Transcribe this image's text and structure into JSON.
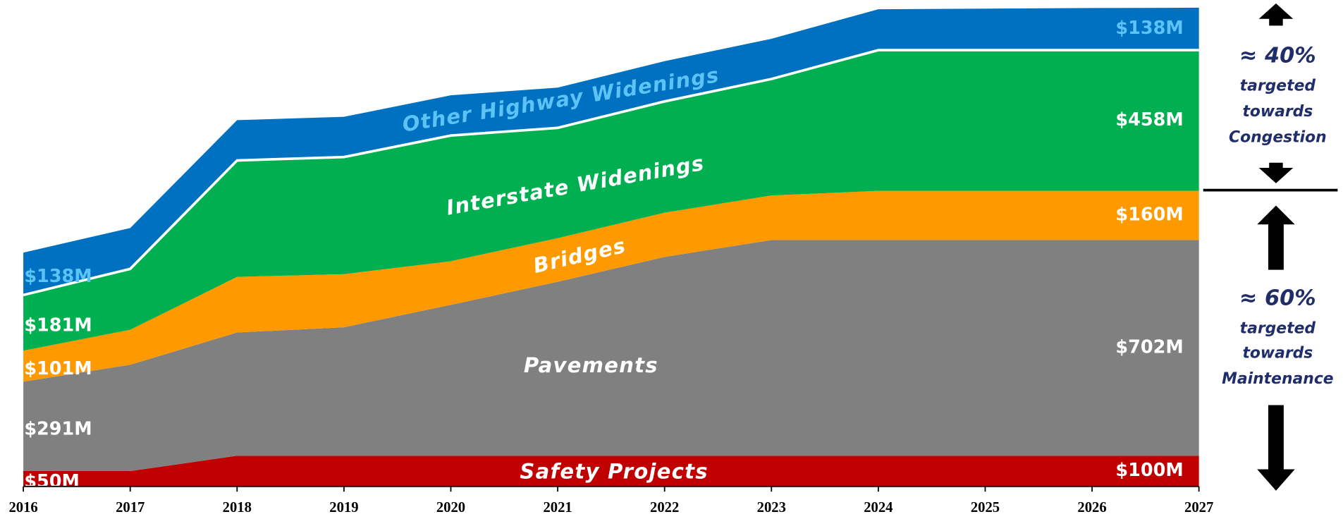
{
  "chart_data": {
    "type": "stacked_area",
    "categories": [
      "2016",
      "2017",
      "2018",
      "2019",
      "2020",
      "2021",
      "2022",
      "2023",
      "2024",
      "2025",
      "2026",
      "2027"
    ],
    "series": [
      {
        "name": "Safety Projects",
        "color": "#c00000",
        "label_color": "#ffffff",
        "values": [
          50,
          50,
          100,
          100,
          100,
          100,
          100,
          100,
          100,
          100,
          100,
          100
        ],
        "value_labels": [
          "$50M",
          null,
          null,
          null,
          null,
          null,
          null,
          null,
          null,
          null,
          null,
          "$100M"
        ]
      },
      {
        "name": "Pavements",
        "color": "#808080",
        "label_color": "#ffffff",
        "values": [
          291,
          346,
          401,
          418,
          491,
          566,
          647,
          702,
          702,
          702,
          702,
          702
        ],
        "value_labels": [
          "$291M",
          null,
          null,
          null,
          null,
          null,
          null,
          null,
          null,
          null,
          null,
          "$702M"
        ]
      },
      {
        "name": "Bridges",
        "color": "#ff9900",
        "label_color": "#ffffff",
        "values": [
          101,
          114,
          181,
          173,
          142,
          142,
          144,
          145,
          160,
          160,
          160,
          160
        ],
        "value_labels": [
          "$101M",
          null,
          null,
          null,
          null,
          null,
          null,
          null,
          null,
          null,
          null,
          "$160M"
        ]
      },
      {
        "name": "Interstate Widenings",
        "color": "#00b050",
        "label_color": "#ffffff",
        "values": [
          181,
          198,
          379,
          381,
          409,
          359,
          362,
          379,
          458,
          458,
          458,
          458
        ],
        "value_labels": [
          "$181M",
          null,
          null,
          null,
          null,
          null,
          null,
          null,
          null,
          null,
          null,
          "$458M"
        ]
      },
      {
        "name": "Other Highway Widenings",
        "color": "#0070c0",
        "label_color": "#5bc3f5",
        "values": [
          138,
          133,
          131,
          131,
          131,
          131,
          131,
          131,
          133,
          135,
          137,
          138
        ],
        "value_labels": [
          "$138M",
          null,
          null,
          null,
          null,
          null,
          null,
          null,
          null,
          null,
          null,
          "$138M"
        ]
      }
    ],
    "annotations": {
      "congestion_pct": "≈ 40%",
      "congestion_text": [
        "targeted",
        "towards",
        "Congestion"
      ],
      "maintenance_pct": "≈ 60%",
      "maintenance_text": [
        "targeted",
        "towards",
        "Maintenance"
      ]
    }
  }
}
